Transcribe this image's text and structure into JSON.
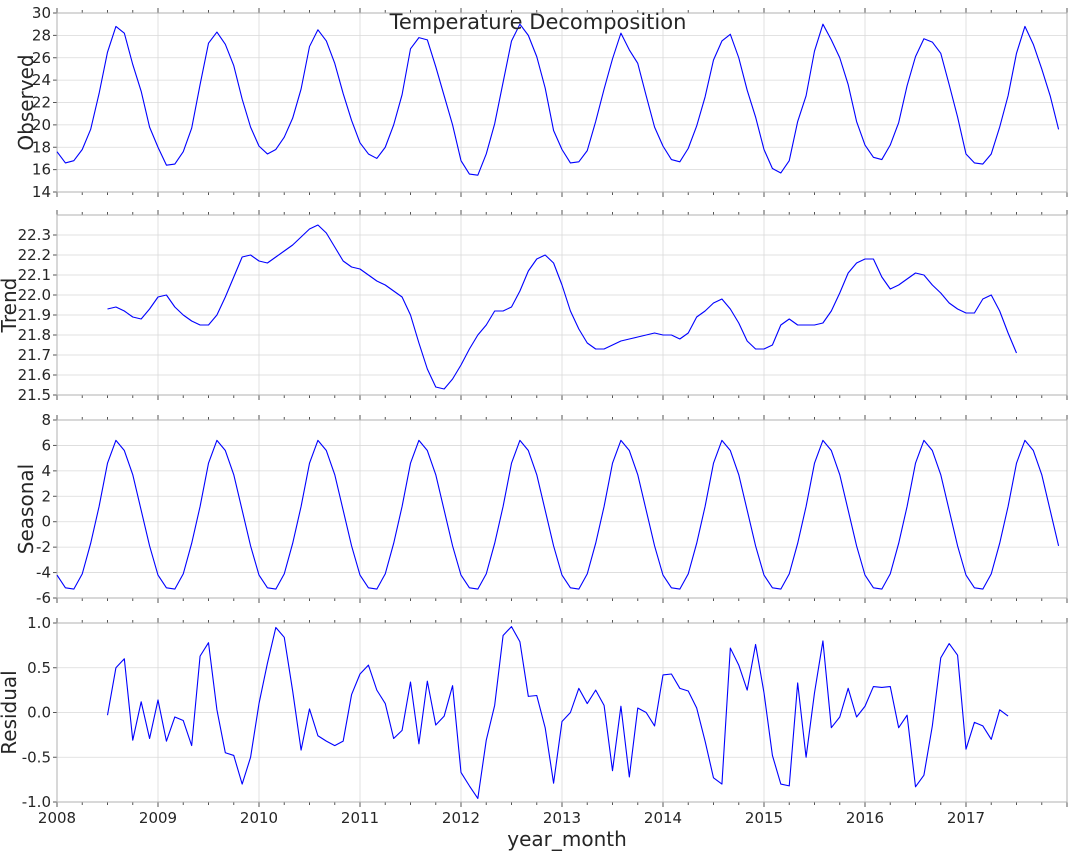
{
  "chart_data": {
    "type": "line",
    "title": "Temperature Decomposition",
    "xlabel": "year_month",
    "x_start": "2008-01",
    "x_ticks": [
      "2008",
      "2009",
      "2010",
      "2011",
      "2012",
      "2013",
      "2014",
      "2015",
      "2016",
      "2017"
    ],
    "x_range": [
      "2008-01",
      "2017-12"
    ],
    "line_color": "#0000ff",
    "grid": true,
    "panels": [
      {
        "ylabel": "Observed",
        "ylim": [
          14,
          30
        ],
        "yticks": [
          "14",
          "16",
          "18",
          "20",
          "22",
          "24",
          "26",
          "28",
          "30"
        ],
        "values": [
          17.6,
          16.6,
          16.8,
          17.8,
          19.6,
          22.8,
          26.5,
          28.8,
          28.2,
          25.4,
          23.0,
          19.8,
          18.0,
          16.4,
          16.5,
          17.6,
          19.7,
          23.6,
          27.3,
          28.3,
          27.2,
          25.3,
          22.3,
          19.8,
          18.1,
          17.4,
          17.8,
          18.9,
          20.6,
          23.2,
          27.0,
          28.5,
          27.5,
          25.5,
          22.8,
          20.4,
          18.4,
          17.4,
          17.0,
          18.0,
          20.0,
          22.7,
          26.8,
          27.8,
          27.6,
          25.2,
          22.6,
          20.0,
          16.8,
          15.6,
          15.5,
          17.4,
          20.1,
          23.8,
          27.5,
          29.0,
          28.0,
          26.1,
          23.3,
          19.5,
          17.8,
          16.6,
          16.7,
          17.7,
          20.3,
          23.2,
          25.9,
          28.2,
          26.7,
          25.5,
          22.6,
          19.8,
          18.1,
          16.9,
          16.7,
          17.9,
          19.9,
          22.5,
          25.8,
          27.5,
          28.1,
          26.0,
          23.1,
          20.7,
          17.8,
          16.1,
          15.7,
          16.8,
          20.3,
          22.6,
          26.6,
          29.0,
          27.6,
          26.0,
          23.6,
          20.3,
          18.2,
          17.1,
          16.9,
          18.2,
          20.2,
          23.5,
          26.1,
          27.7,
          27.4,
          26.4,
          23.6,
          20.7,
          17.4,
          16.6,
          16.5,
          17.4,
          19.8,
          22.6,
          26.4,
          28.8,
          27.2,
          25.0,
          22.6,
          19.6
        ]
      },
      {
        "ylabel": "Trend",
        "ylim": [
          21.5,
          22.4
        ],
        "yticks": [
          "21.5",
          "21.6",
          "21.7",
          "21.8",
          "21.9",
          "22.0",
          "22.1",
          "22.2",
          "22.3"
        ],
        "values": [
          null,
          null,
          null,
          null,
          null,
          null,
          21.93,
          21.94,
          21.92,
          21.89,
          21.88,
          21.93,
          21.99,
          22.0,
          21.94,
          21.9,
          21.87,
          21.85,
          21.85,
          21.9,
          21.99,
          22.09,
          22.19,
          22.2,
          22.17,
          22.16,
          22.19,
          22.22,
          22.25,
          22.29,
          22.33,
          22.35,
          22.31,
          22.24,
          22.17,
          22.14,
          22.13,
          22.1,
          22.07,
          22.05,
          22.02,
          21.99,
          21.9,
          21.76,
          21.63,
          21.54,
          21.53,
          21.58,
          21.65,
          21.73,
          21.8,
          21.85,
          21.92,
          21.92,
          21.94,
          22.02,
          22.12,
          22.18,
          22.2,
          22.16,
          22.05,
          21.92,
          21.83,
          21.76,
          21.73,
          21.73,
          21.75,
          21.77,
          21.78,
          21.79,
          21.8,
          21.81,
          21.8,
          21.8,
          21.78,
          21.81,
          21.89,
          21.92,
          21.96,
          21.98,
          21.93,
          21.86,
          21.77,
          21.73,
          21.73,
          21.75,
          21.85,
          21.88,
          21.85,
          21.85,
          21.85,
          21.86,
          21.92,
          22.01,
          22.11,
          22.16,
          22.18,
          22.18,
          22.09,
          22.03,
          22.05,
          22.08,
          22.11,
          22.1,
          22.05,
          22.01,
          21.96,
          21.93,
          21.91,
          21.91,
          21.98,
          22.0,
          21.92,
          21.81,
          21.71,
          null,
          null,
          null,
          null,
          null,
          null,
          null
        ]
      },
      {
        "ylabel": "Seasonal",
        "ylim": [
          -6,
          8
        ],
        "yticks": [
          "-6",
          "-4",
          "-2",
          "0",
          "2",
          "4",
          "6",
          "8"
        ],
        "values": [
          -4.2,
          -5.2,
          -5.3,
          -4.1,
          -1.7,
          1.2,
          4.6,
          6.4,
          5.6,
          3.7,
          0.9,
          -1.9,
          -4.2,
          -5.2,
          -5.3,
          -4.1,
          -1.7,
          1.2,
          4.6,
          6.4,
          5.6,
          3.7,
          0.9,
          -1.9,
          -4.2,
          -5.2,
          -5.3,
          -4.1,
          -1.7,
          1.2,
          4.6,
          6.4,
          5.6,
          3.7,
          0.9,
          -1.9,
          -4.2,
          -5.2,
          -5.3,
          -4.1,
          -1.7,
          1.2,
          4.6,
          6.4,
          5.6,
          3.7,
          0.9,
          -1.9,
          -4.2,
          -5.2,
          -5.3,
          -4.1,
          -1.7,
          1.2,
          4.6,
          6.4,
          5.6,
          3.7,
          0.9,
          -1.9,
          -4.2,
          -5.2,
          -5.3,
          -4.1,
          -1.7,
          1.2,
          4.6,
          6.4,
          5.6,
          3.7,
          0.9,
          -1.9,
          -4.2,
          -5.2,
          -5.3,
          -4.1,
          -1.7,
          1.2,
          4.6,
          6.4,
          5.6,
          3.7,
          0.9,
          -1.9,
          -4.2,
          -5.2,
          -5.3,
          -4.1,
          -1.7,
          1.2,
          4.6,
          6.4,
          5.6,
          3.7,
          0.9,
          -1.9,
          -4.2,
          -5.2,
          -5.3,
          -4.1,
          -1.7,
          1.2,
          4.6,
          6.4,
          5.6,
          3.7,
          0.9,
          -1.9,
          -4.2,
          -5.2,
          -5.3,
          -4.1,
          -1.7,
          1.2,
          4.6,
          6.4,
          5.6,
          3.7,
          0.9,
          -1.9
        ]
      },
      {
        "ylabel": "Residual",
        "ylim": [
          -1.0,
          1.0
        ],
        "yticks": [
          "-1.0",
          "-0.5",
          "0.0",
          "0.5",
          "1.0"
        ],
        "values": [
          null,
          null,
          null,
          null,
          null,
          null,
          -0.03,
          0.5,
          0.6,
          -0.31,
          0.12,
          -0.29,
          0.14,
          -0.32,
          -0.05,
          -0.09,
          -0.37,
          0.63,
          0.78,
          0.03,
          -0.45,
          -0.48,
          -0.8,
          -0.5,
          0.1,
          0.55,
          0.95,
          0.84,
          0.24,
          -0.42,
          0.04,
          -0.26,
          -0.32,
          -0.37,
          -0.32,
          0.2,
          0.43,
          0.53,
          0.25,
          0.1,
          -0.29,
          -0.2,
          0.34,
          -0.35,
          0.35,
          -0.14,
          -0.04,
          0.3,
          -0.67,
          -0.82,
          -0.96,
          -0.31,
          0.08,
          0.86,
          0.96,
          0.79,
          0.18,
          0.19,
          -0.17,
          -0.79,
          -0.1,
          0.0,
          0.27,
          0.1,
          0.25,
          0.08,
          -0.65,
          0.07,
          -0.72,
          0.05,
          0.0,
          -0.15,
          0.42,
          0.43,
          0.27,
          0.24,
          0.05,
          -0.32,
          -0.73,
          -0.8,
          0.72,
          0.53,
          0.25,
          0.76,
          0.22,
          -0.48,
          -0.8,
          -0.82,
          0.33,
          -0.5,
          0.22,
          0.8,
          -0.17,
          -0.05,
          0.27,
          -0.05,
          0.07,
          0.29,
          0.28,
          0.29,
          -0.17,
          -0.03,
          -0.83,
          -0.7,
          -0.15,
          0.61,
          0.77,
          0.64,
          -0.41,
          -0.11,
          -0.15,
          -0.3,
          0.03,
          -0.04,
          null,
          null,
          null,
          null,
          null,
          null,
          null
        ]
      }
    ]
  }
}
